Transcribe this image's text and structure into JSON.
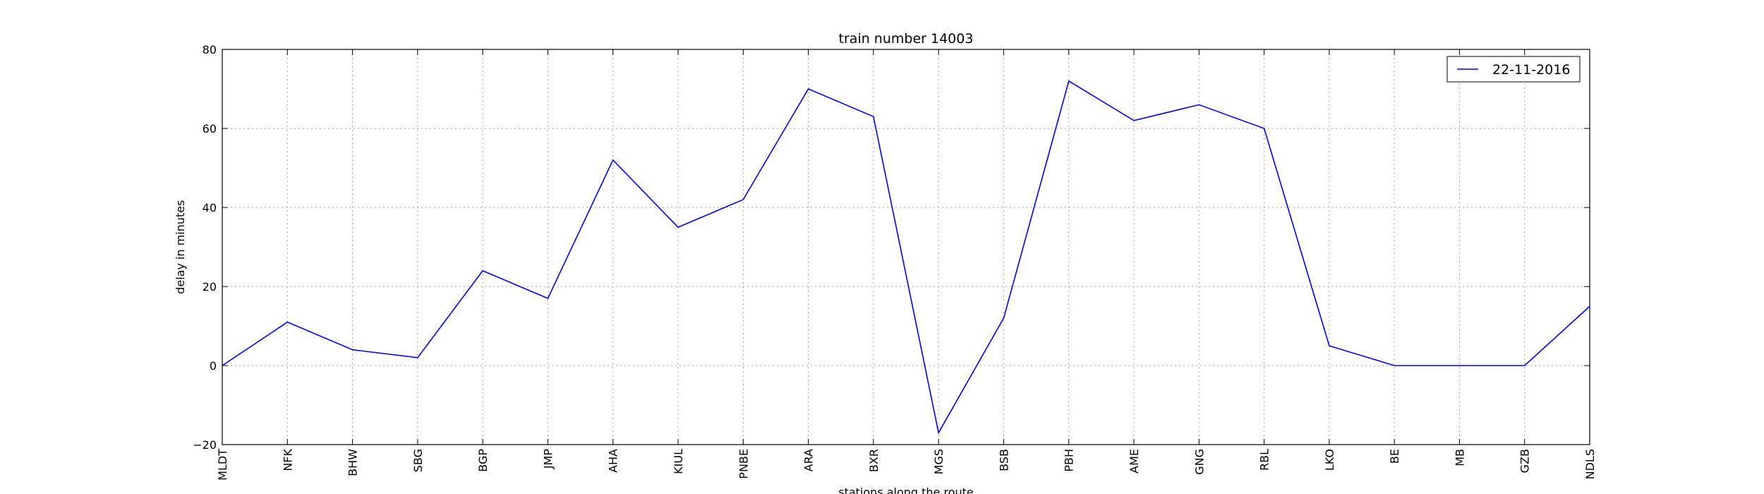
{
  "chart_data": {
    "type": "line",
    "title": "train number 14003",
    "xlabel": "stations along the route",
    "ylabel": "delay in minutes",
    "categories": [
      "MLDT",
      "NFK",
      "BHW",
      "SBG",
      "BGP",
      "JMP",
      "AHA",
      "KIUL",
      "PNBE",
      "ARA",
      "BXR",
      "MGS",
      "BSB",
      "PBH",
      "AME",
      "GNG",
      "RBL",
      "LKO",
      "BE",
      "MB",
      "GZB",
      "NDLS"
    ],
    "series": [
      {
        "name": "22-11-2016",
        "values": [
          0,
          11,
          4,
          2,
          24,
          17,
          52,
          35,
          42,
          70,
          63,
          -17,
          12,
          72,
          62,
          66,
          60,
          5,
          0,
          0,
          0,
          15
        ],
        "color": "#0000ff"
      }
    ],
    "ylim": [
      -20,
      80
    ],
    "yticks": [
      -20,
      0,
      20,
      40,
      60,
      80
    ],
    "grid": true,
    "legend_position": "top-right"
  }
}
